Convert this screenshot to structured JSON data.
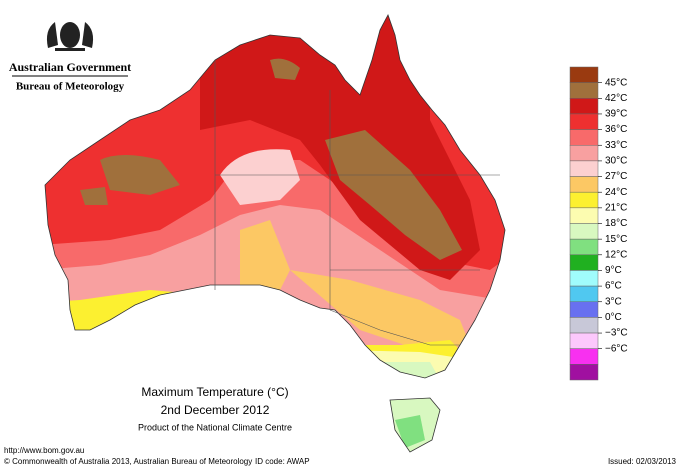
{
  "header": {
    "government": "Australian Government",
    "bureau": "Bureau of Meteorology"
  },
  "legend": {
    "colors": [
      "#9a3a10",
      "#a0703c",
      "#d01818",
      "#ee3030",
      "#f86a6a",
      "#f8a0a0",
      "#fcd0d0",
      "#fcc864",
      "#fcf030",
      "#fcfcb0",
      "#d8f8c0",
      "#80e080",
      "#20b020",
      "#a0fcfc",
      "#50c8f0",
      "#6870f0",
      "#c8c8d8",
      "#fcc8fc",
      "#f830f0",
      "#a010a0"
    ],
    "labels": [
      "45°C",
      "42°C",
      "39°C",
      "36°C",
      "33°C",
      "30°C",
      "27°C",
      "24°C",
      "21°C",
      "18°C",
      "15°C",
      "12°C",
      "9°C",
      "6°C",
      "3°C",
      "0°C",
      "−3°C",
      "−6°C"
    ]
  },
  "title": {
    "line1": "Maximum Temperature (°C)",
    "line2": "2nd December 2012",
    "line3": "Product of the National Climate Centre"
  },
  "footer": {
    "url": "http://www.bom.gov.au",
    "copyright": "© Commonwealth of Australia 2013, Australian Bureau of Meteorology",
    "id": "ID code: AWAP",
    "issued": "Issued: 02/03/2013"
  }
}
